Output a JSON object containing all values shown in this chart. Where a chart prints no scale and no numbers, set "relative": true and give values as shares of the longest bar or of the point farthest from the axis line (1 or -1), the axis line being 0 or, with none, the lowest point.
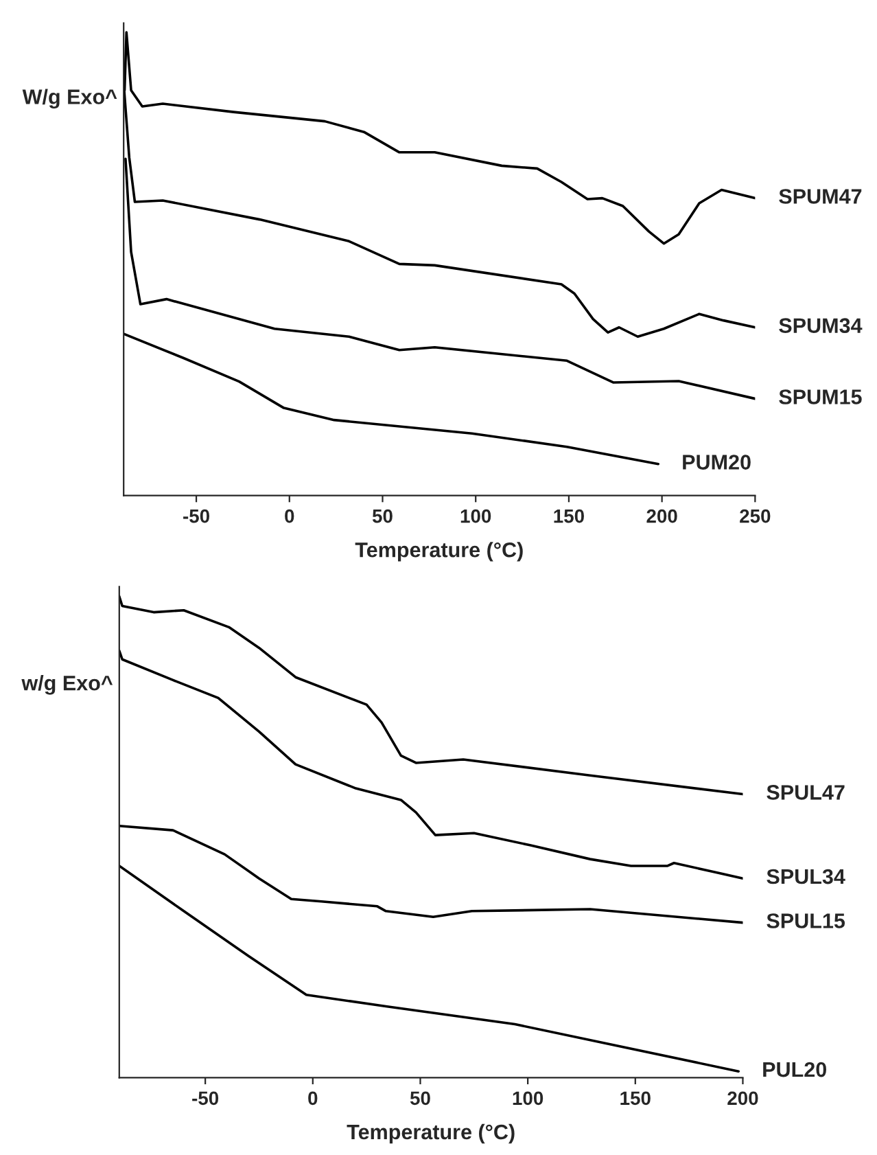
{
  "chart_data": [
    {
      "type": "line",
      "relative": true,
      "xlabel": "Temperature (°C)",
      "ylabel": "W/g Exo^",
      "xlim": [
        -89,
        250
      ],
      "xticks": [
        -50,
        0,
        50,
        100,
        150,
        200,
        250
      ],
      "tick_labels": "x",
      "legend": false,
      "marker": "none",
      "line_style": "solid",
      "series": [
        {
          "name": "SPUM47",
          "color": "#000000",
          "x": [
            -88.5,
            -87.5,
            -85,
            -79,
            -68,
            -30,
            19,
            40,
            59,
            78,
            114,
            133,
            146,
            160,
            168,
            179,
            193,
            201,
            209,
            220,
            232,
            250
          ],
          "values": [
            0.875,
            1.0,
            0.875,
            0.84,
            0.846,
            0.828,
            0.808,
            0.785,
            0.741,
            0.741,
            0.712,
            0.706,
            0.677,
            0.64,
            0.642,
            0.625,
            0.57,
            0.544,
            0.564,
            0.631,
            0.66,
            0.642
          ]
        },
        {
          "name": "SPUM34",
          "color": "#000000",
          "x": [
            -89,
            -86,
            -83,
            -68,
            -16,
            32,
            59,
            78,
            146,
            153,
            163,
            171,
            177,
            187,
            201,
            220,
            233,
            250
          ],
          "values": [
            0.89,
            0.73,
            0.634,
            0.637,
            0.596,
            0.549,
            0.5,
            0.497,
            0.456,
            0.436,
            0.381,
            0.352,
            0.363,
            0.343,
            0.36,
            0.392,
            0.378,
            0.363
          ]
        },
        {
          "name": "SPUM15",
          "color": "#000000",
          "x": [
            -88,
            -85,
            -80,
            -66,
            -8,
            32,
            59,
            78,
            149,
            174,
            209,
            250
          ],
          "values": [
            0.727,
            0.526,
            0.413,
            0.424,
            0.36,
            0.343,
            0.314,
            0.32,
            0.291,
            0.244,
            0.247,
            0.209
          ]
        },
        {
          "name": "PUM20",
          "color": "#000000",
          "x": [
            -89,
            -57,
            -27,
            -3,
            24,
            98,
            149,
            198
          ],
          "values": [
            0.349,
            0.297,
            0.246,
            0.189,
            0.163,
            0.134,
            0.105,
            0.068
          ]
        }
      ]
    },
    {
      "type": "line",
      "relative": true,
      "xlabel": "Temperature (°C)",
      "ylabel": "w/g Exo^",
      "xlim": [
        -90,
        200
      ],
      "xticks": [
        -50,
        0,
        50,
        100,
        150,
        200
      ],
      "tick_labels": "x",
      "legend": false,
      "marker": "none",
      "line_style": "solid",
      "series": [
        {
          "name": "SPUL47",
          "color": "#000000",
          "x": [
            -90,
            -88.6,
            -74,
            -60,
            -39,
            -25,
            -8,
            25,
            32,
            41,
            48,
            70,
            129,
            200
          ],
          "values": [
            1.0,
            0.98,
            0.967,
            0.971,
            0.936,
            0.893,
            0.832,
            0.775,
            0.738,
            0.669,
            0.654,
            0.661,
            0.628,
            0.589
          ]
        },
        {
          "name": "SPUL34",
          "color": "#000000",
          "x": [
            -90,
            -88.6,
            -65,
            -44,
            -25,
            -8,
            20,
            41,
            48,
            57,
            75,
            101,
            129,
            148,
            165,
            168,
            200
          ],
          "values": [
            0.887,
            0.869,
            0.826,
            0.789,
            0.719,
            0.651,
            0.601,
            0.577,
            0.551,
            0.504,
            0.508,
            0.483,
            0.454,
            0.44,
            0.44,
            0.446,
            0.414
          ]
        },
        {
          "name": "SPUL15",
          "color": "#000000",
          "x": [
            -90,
            -65,
            -41,
            -25,
            -10,
            4,
            30,
            34,
            56,
            74,
            129,
            200
          ],
          "values": [
            0.523,
            0.514,
            0.464,
            0.414,
            0.371,
            0.366,
            0.356,
            0.346,
            0.334,
            0.346,
            0.35,
            0.322
          ]
        },
        {
          "name": "PUL20",
          "color": "#000000",
          "x": [
            -90,
            -60,
            -30,
            -3,
            34,
            94,
            198
          ],
          "values": [
            0.44,
            0.346,
            0.253,
            0.172,
            0.148,
            0.111,
            0.013
          ]
        }
      ]
    }
  ]
}
